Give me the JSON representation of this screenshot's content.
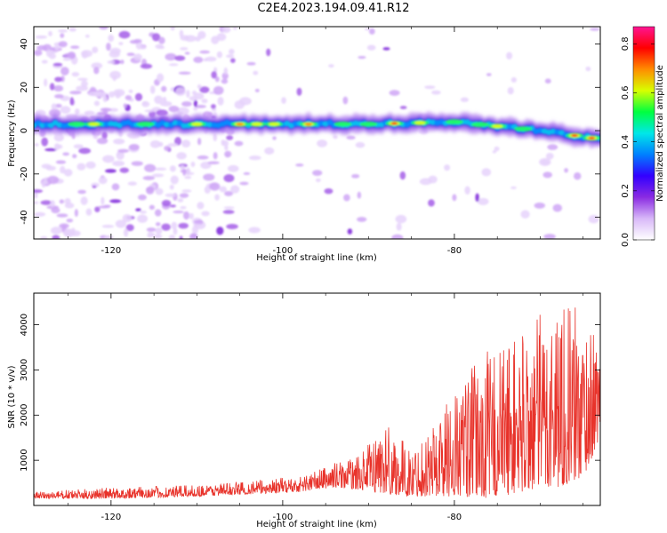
{
  "figure": {
    "title": "C2E4.2023.194.09.41.R12"
  },
  "chart_data": [
    {
      "type": "heatmap",
      "title": "",
      "xlabel": "Height of straight line (km)",
      "ylabel": "Frequency (Hz)",
      "xlim": [
        -129,
        -63
      ],
      "ylim": [
        -50,
        48
      ],
      "xticks": [
        -120,
        -100,
        -80
      ],
      "xtick_labels": [
        "-120",
        "-100",
        "-80"
      ],
      "yticks": [
        -40,
        -20,
        0,
        20,
        40
      ],
      "ytick_labels": [
        "-40",
        "-20",
        "0",
        "20",
        "40"
      ],
      "colorbar": {
        "label": "Normalized spectral amplitude",
        "range": [
          0,
          0.87
        ],
        "ticks": [
          0.0,
          0.2,
          0.4,
          0.6,
          0.8
        ],
        "tick_labels": [
          "0.0",
          "0.2",
          "0.4",
          "0.6",
          "0.8"
        ],
        "colors": [
          "#ffffff",
          "#d8b8f8",
          "#8a2be2",
          "#3200ff",
          "#0080ff",
          "#00e8e8",
          "#00ff40",
          "#d8ff00",
          "#ff8c00",
          "#ff0000",
          "#ff1493"
        ]
      },
      "ridge": {
        "description_values": [
          [
            -129,
            3
          ],
          [
            -110,
            3
          ],
          [
            -100,
            3
          ],
          [
            -90,
            3
          ],
          [
            -80,
            4
          ],
          [
            -70,
            0
          ],
          [
            -63,
            -4
          ]
        ]
      }
    },
    {
      "type": "line",
      "title": "",
      "xlabel": "Height of straight line (km)",
      "ylabel": "SNR (10 * v/v)",
      "xlim": [
        -129,
        -63
      ],
      "ylim": [
        0,
        4700
      ],
      "xticks": [
        -120,
        -100,
        -80
      ],
      "xtick_labels": [
        "-120",
        "-100",
        "-80"
      ],
      "yticks": [
        1000,
        2000,
        3000,
        4000
      ],
      "ytick_labels": [
        "1000",
        "2000",
        "3000",
        "4000"
      ],
      "series": [
        {
          "color": "#e8322a",
          "envelope": [
            [
              -129,
              150,
              300
            ],
            [
              -120,
              150,
              400
            ],
            [
              -110,
              200,
              450
            ],
            [
              -104,
              250,
              550
            ],
            [
              -98,
              300,
              650
            ],
            [
              -94,
              400,
              950
            ],
            [
              -91,
              350,
              1100
            ],
            [
              -88,
              250,
              1900
            ],
            [
              -85,
              200,
              1200
            ],
            [
              -80,
              200,
              2600
            ],
            [
              -76,
              150,
              3500
            ],
            [
              -72,
              300,
              3900
            ],
            [
              -68,
              400,
              4700
            ],
            [
              -65,
              600,
              4300
            ],
            [
              -63,
              1500,
              3500
            ]
          ]
        }
      ]
    }
  ]
}
